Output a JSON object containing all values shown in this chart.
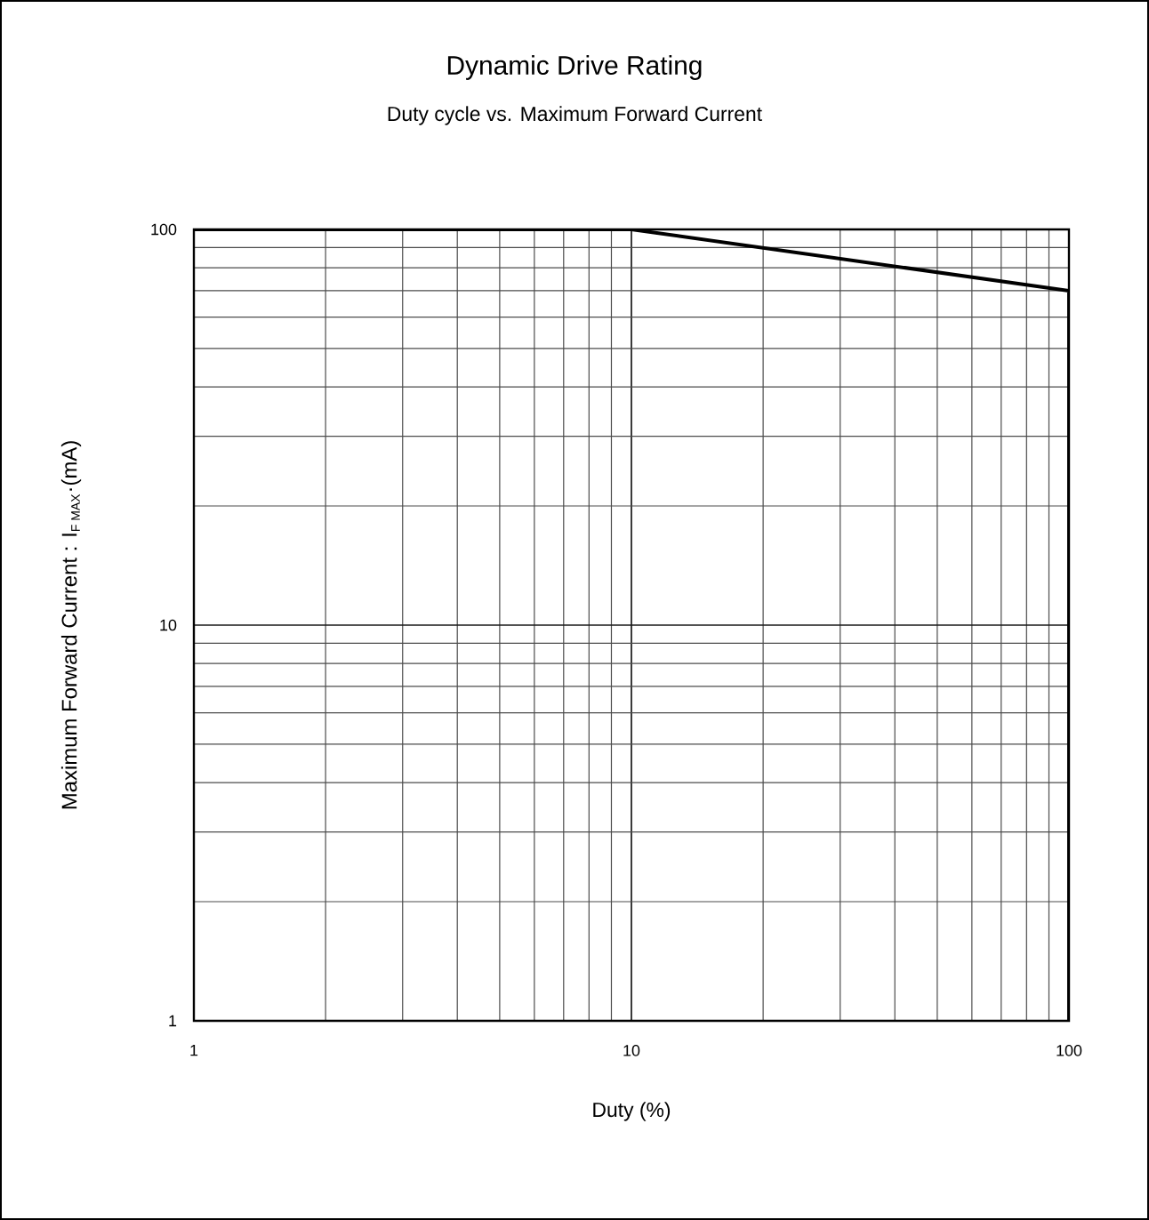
{
  "chart_data": {
    "type": "line",
    "title": "Dynamic Drive Rating",
    "subtitle": "Duty cycle vs. Maximum Forward Current",
    "xlabel": "Duty (%)",
    "ylabel": "\\mbox{Maximum Forward Current : I}_{\\mbox{\\scriptsize F MAX}}\\mbox{·(mA)}",
    "log": "xy",
    "grid": true,
    "marker": "none",
    "line_style": "solid",
    "xlim": [
      1,
      100
    ],
    "ylim": [
      1,
      100
    ],
    "xticks": [
      1,
      10,
      100
    ],
    "yticks": [
      1,
      10,
      100
    ],
    "series": [
      {
        "color": "#000000",
        "x": [
          1,
          10,
          100,
          100
        ],
        "values": [
          100,
          100,
          70,
          1
        ]
      }
    ]
  }
}
